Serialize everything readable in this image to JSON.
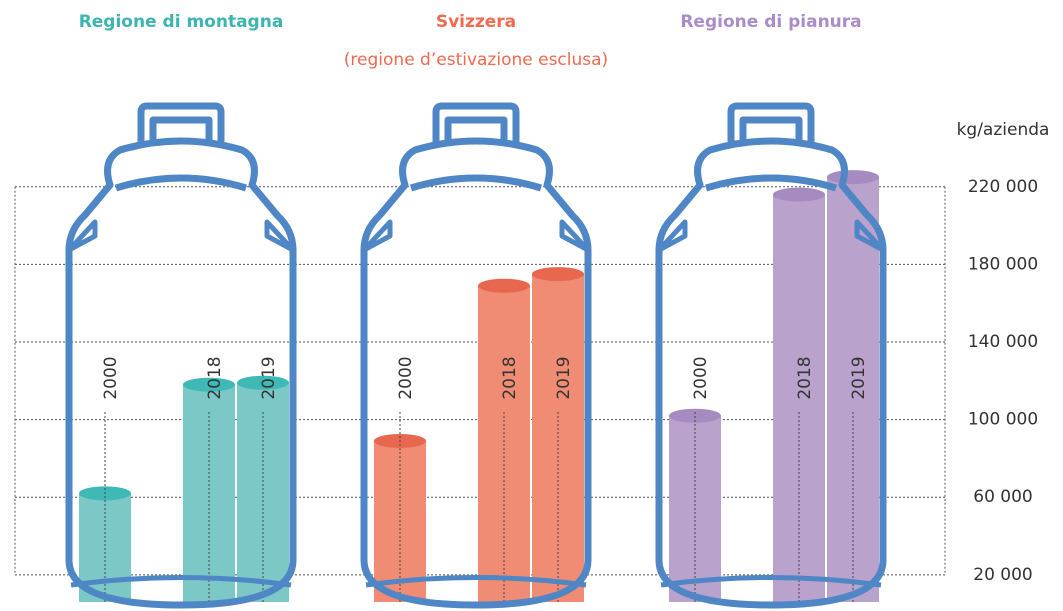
{
  "chart_data": {
    "type": "bar",
    "categories": [
      "2000",
      "2018",
      "2019"
    ],
    "series": [
      {
        "name": "Regione di montagna",
        "color": "#7cc8c6",
        "values": [
          62000,
          118000,
          119000
        ]
      },
      {
        "name": "Svizzera",
        "subtitle": "(regione d’estivazione esclusa)",
        "color": "#f08c74",
        "values": [
          89000,
          169000,
          175000
        ]
      },
      {
        "name": "Regione di pianura",
        "color": "#b9a2cc",
        "values": [
          102000,
          216000,
          225000
        ]
      }
    ],
    "ylabel": "kg/azienda",
    "ylim": [
      6000,
      240000
    ],
    "yticks": [
      {
        "value": 20000,
        "label": "20 000"
      },
      {
        "value": 60000,
        "label": "60 000"
      },
      {
        "value": 100000,
        "label": "100 000"
      },
      {
        "value": 140000,
        "label": "140 000"
      },
      {
        "value": 180000,
        "label": "180 000"
      },
      {
        "value": 220000,
        "label": "220 000"
      }
    ],
    "grid": true
  }
}
